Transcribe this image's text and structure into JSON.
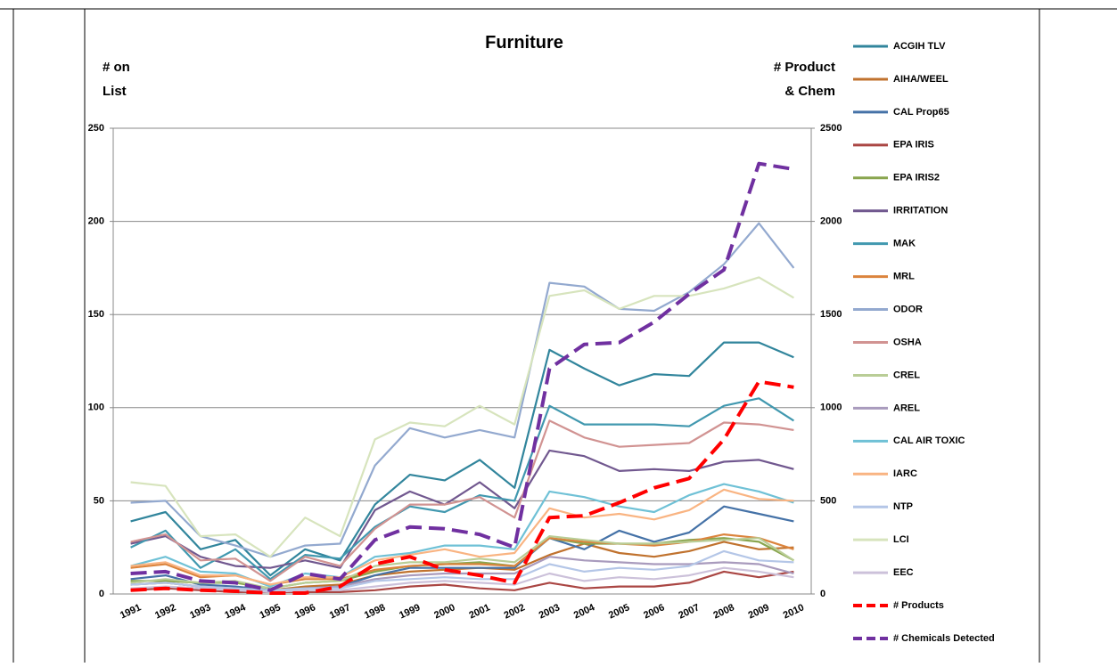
{
  "chart_data": {
    "type": "line",
    "title": "Furniture",
    "y_label": [
      "# on",
      "List"
    ],
    "y2_label": [
      "# Product",
      "& Chem"
    ],
    "categories": [
      "1991",
      "1992",
      "1993",
      "1994",
      "1995",
      "1996",
      "1997",
      "1998",
      "1999",
      "2000",
      "2001",
      "2002",
      "2003",
      "2004",
      "2005",
      "2006",
      "2007",
      "2008",
      "2009",
      "2010"
    ],
    "ylim": [
      0,
      250
    ],
    "yticks": [
      0,
      50,
      100,
      150,
      200,
      250
    ],
    "y2lim": [
      0,
      2500
    ],
    "y2ticks": [
      0,
      500,
      1000,
      1500,
      2000,
      2500
    ],
    "grid": true,
    "legend": "right",
    "series": [
      {
        "name": "ACGIH TLV",
        "color": "#31859c",
        "values": [
          39,
          44,
          24,
          29,
          10,
          24,
          18,
          48,
          64,
          61,
          72,
          57,
          131,
          121,
          112,
          118,
          117,
          135,
          135,
          127
        ]
      },
      {
        "name": "AIHA/WEEL",
        "color": "#c0722e",
        "values": [
          5,
          6,
          4,
          3,
          2,
          4,
          5,
          10,
          12,
          13,
          14,
          13,
          21,
          27,
          22,
          20,
          23,
          28,
          24,
          25
        ]
      },
      {
        "name": "CAL Prop65",
        "color": "#4572a7",
        "values": [
          8,
          10,
          5,
          4,
          2,
          3,
          4,
          10,
          14,
          14,
          14,
          14,
          30,
          24,
          34,
          28,
          33,
          47,
          43,
          39
        ]
      },
      {
        "name": "EPA IRIS",
        "color": "#aa4643",
        "values": [
          2,
          3,
          2,
          1,
          1,
          1,
          1,
          2,
          4,
          5,
          3,
          2,
          6,
          3,
          4,
          4,
          6,
          12,
          9,
          12
        ]
      },
      {
        "name": "EPA IRIS2",
        "color": "#89a54e",
        "values": [
          7,
          7,
          6,
          6,
          3,
          6,
          7,
          12,
          15,
          16,
          17,
          15,
          30,
          27,
          27,
          27,
          29,
          30,
          28,
          18
        ]
      },
      {
        "name": "IRRITATION",
        "color": "#71588f",
        "values": [
          27,
          31,
          20,
          15,
          14,
          18,
          14,
          45,
          55,
          48,
          60,
          46,
          77,
          74,
          66,
          67,
          66,
          71,
          72,
          67
        ]
      },
      {
        "name": "MAK",
        "color": "#4198af",
        "values": [
          25,
          34,
          14,
          24,
          8,
          21,
          19,
          36,
          47,
          44,
          53,
          50,
          101,
          91,
          91,
          91,
          90,
          101,
          105,
          93
        ]
      },
      {
        "name": "MRL",
        "color": "#db843d",
        "values": [
          14,
          16,
          9,
          10,
          5,
          8,
          8,
          13,
          15,
          16,
          16,
          15,
          30,
          28,
          27,
          26,
          28,
          32,
          30,
          24
        ]
      },
      {
        "name": "ODOR",
        "color": "#93a9cf",
        "values": [
          49,
          50,
          31,
          26,
          20,
          26,
          27,
          69,
          89,
          84,
          88,
          84,
          167,
          165,
          153,
          152,
          162,
          177,
          199,
          175
        ]
      },
      {
        "name": "OSHA",
        "color": "#d19392",
        "values": [
          28,
          32,
          18,
          19,
          7,
          20,
          15,
          35,
          48,
          48,
          52,
          41,
          93,
          84,
          79,
          80,
          81,
          92,
          91,
          88
        ]
      },
      {
        "name": "CREL",
        "color": "#b9cd96",
        "values": [
          6,
          8,
          6,
          7,
          3,
          6,
          7,
          15,
          17,
          17,
          19,
          17,
          31,
          29,
          27,
          27,
          28,
          29,
          30,
          18
        ]
      },
      {
        "name": "AREL",
        "color": "#a99bbd",
        "values": [
          5,
          6,
          4,
          3,
          2,
          3,
          4,
          8,
          10,
          11,
          11,
          11,
          20,
          18,
          17,
          16,
          16,
          17,
          16,
          11
        ]
      },
      {
        "name": "CAL AIR TOXIC",
        "color": "#6fc1d6",
        "values": [
          15,
          20,
          12,
          11,
          4,
          11,
          9,
          20,
          22,
          26,
          26,
          24,
          55,
          52,
          47,
          44,
          53,
          59,
          55,
          49
        ]
      },
      {
        "name": "IARC",
        "color": "#f9b482",
        "values": [
          15,
          17,
          10,
          10,
          5,
          9,
          9,
          18,
          21,
          24,
          20,
          22,
          46,
          41,
          43,
          40,
          45,
          56,
          51,
          50
        ]
      },
      {
        "name": "NTP",
        "color": "#b4c6e7",
        "values": [
          5,
          6,
          4,
          3,
          2,
          3,
          3,
          7,
          8,
          9,
          8,
          8,
          16,
          12,
          14,
          13,
          15,
          23,
          18,
          17
        ]
      },
      {
        "name": "LCI",
        "color": "#d7e4bd",
        "values": [
          60,
          58,
          31,
          32,
          20,
          41,
          31,
          83,
          92,
          90,
          101,
          91,
          160,
          163,
          153,
          160,
          160,
          164,
          170,
          159
        ]
      },
      {
        "name": "EEC",
        "color": "#ccc1da",
        "values": [
          3,
          4,
          3,
          2,
          1,
          2,
          2,
          4,
          6,
          7,
          6,
          5,
          11,
          7,
          9,
          8,
          10,
          14,
          12,
          9
        ]
      },
      {
        "name": "# Products",
        "color": "#ff0000",
        "axis": "y2",
        "dashed": true,
        "values": [
          20,
          30,
          20,
          15,
          5,
          5,
          40,
          160,
          200,
          130,
          100,
          60,
          410,
          420,
          490,
          570,
          620,
          830,
          1140,
          1110
        ]
      },
      {
        "name": "# Chemicals Detected",
        "color": "#7030a0",
        "axis": "y2",
        "dashed": true,
        "values": [
          110,
          120,
          70,
          60,
          20,
          110,
          80,
          290,
          360,
          350,
          320,
          250,
          1210,
          1340,
          1350,
          1460,
          1610,
          1740,
          2310,
          2280
        ]
      }
    ]
  }
}
